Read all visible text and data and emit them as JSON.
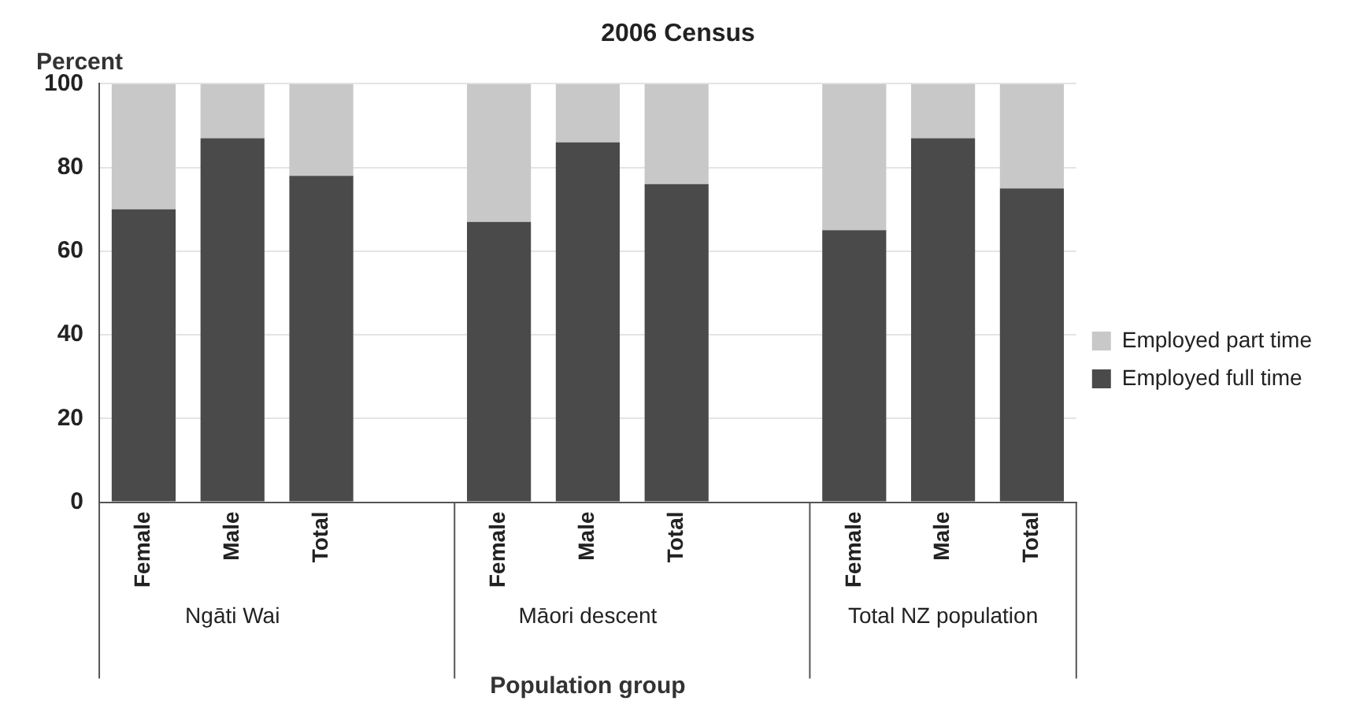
{
  "chart_data": {
    "type": "bar",
    "title": "2006 Census",
    "ylabel": "Percent",
    "xlabel": "Population group",
    "categories": [
      "Female",
      "Male",
      "Total",
      null,
      "Female",
      "Male",
      "Total",
      null,
      "Female",
      "Male",
      "Total"
    ],
    "annotations": [
      "Ngāti Wai",
      "Māori descent",
      "Total NZ population"
    ],
    "stacked": true,
    "series": [
      {
        "name": "Employed full time",
        "color": "#4a4a4a",
        "values": [
          70,
          87,
          78,
          null,
          67,
          86,
          76,
          null,
          65,
          87,
          75
        ]
      },
      {
        "name": "Employed part time",
        "color": "#c8c8c8",
        "values": [
          30,
          13,
          22,
          null,
          33,
          14,
          24,
          null,
          35,
          13,
          25
        ]
      }
    ],
    "ylim": [
      0,
      100
    ],
    "yticks": [
      0,
      20,
      40,
      60,
      80,
      100
    ],
    "grid": "y",
    "legend": "right"
  }
}
